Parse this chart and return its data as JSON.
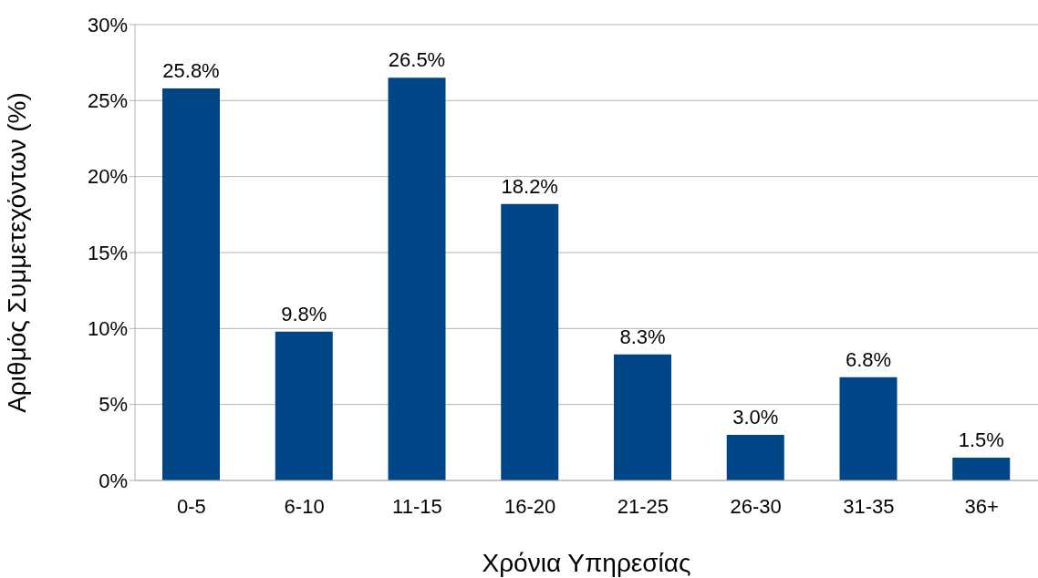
{
  "chart_data": {
    "type": "bar",
    "xlabel": "Χρόνια Υπηρεσίας",
    "ylabel": "Αριθμός Συμμετεχόντων (%)",
    "categories": [
      "0-5",
      "6-10",
      "11-15",
      "16-20",
      "21-25",
      "26-30",
      "31-35",
      "36+"
    ],
    "values": [
      25.8,
      9.8,
      26.5,
      18.2,
      8.3,
      3.0,
      6.8,
      1.5
    ],
    "value_labels": [
      "25.8%",
      "9.8%",
      "26.5%",
      "18.2%",
      "8.3%",
      "3.0%",
      "6.8%",
      "1.5%"
    ],
    "color": "#004586",
    "ylim": [
      0,
      30
    ],
    "yticks": [
      {
        "value": 0,
        "label": "0%"
      },
      {
        "value": 5,
        "label": "5%"
      },
      {
        "value": 10,
        "label": "10%"
      },
      {
        "value": 15,
        "label": "15%"
      },
      {
        "value": 20,
        "label": "20%"
      },
      {
        "value": 25,
        "label": "25%"
      },
      {
        "value": 30,
        "label": "30%"
      }
    ],
    "grid": "y",
    "legend": false
  }
}
